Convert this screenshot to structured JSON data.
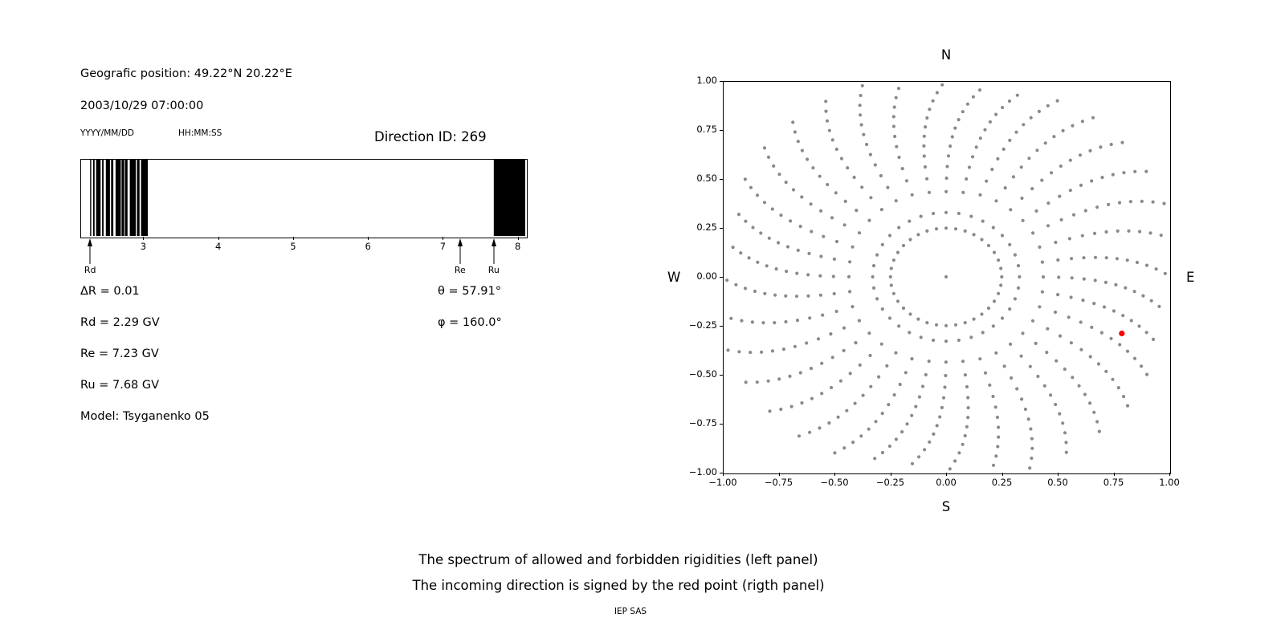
{
  "page": {
    "bg": "#ffffff",
    "caption_line1": "The spectrum of allowed and forbidden rigidities (left panel)",
    "caption_line2": "The incoming direction is signed by the red point (rigth panel)",
    "credit": "IEP SAS"
  },
  "info": {
    "geo_position": "Geografic position: 49.22°N 20.22°E",
    "datetime": "2003/10/29 07:00:00",
    "date_format_label": "YYYY/MM/DD",
    "time_format_label": "HH:MM:SS",
    "direction_id": "Direction ID: 269",
    "delta_r": "ΔR = 0.01",
    "rd": "Rd = 2.29 GV",
    "re": "Re = 7.23 GV",
    "ru": "Ru = 7.68 GV",
    "model": "Model: Tsyganenko 05",
    "theta": "θ = 57.91°",
    "phi": "φ = 160.0°"
  },
  "chart_data": [
    {
      "type": "bar",
      "name": "rigidity-spectrum",
      "description": "Binary spectrum of allowed (white) and forbidden (black) cosmic-ray rigidities in GV",
      "xlim": [
        2.17,
        8.1
      ],
      "xtick_values": [
        3,
        4,
        5,
        6,
        7,
        8
      ],
      "xtick_labels": [
        "3",
        "4",
        "5",
        "6",
        "7",
        "8"
      ],
      "black_segments": [
        [
          2.29,
          2.305
        ],
        [
          2.33,
          2.35
        ],
        [
          2.37,
          2.43
        ],
        [
          2.45,
          2.47
        ],
        [
          2.5,
          2.555
        ],
        [
          2.57,
          2.6
        ],
        [
          2.63,
          2.7
        ],
        [
          2.71,
          2.745
        ],
        [
          2.755,
          2.79
        ],
        [
          2.82,
          2.9
        ],
        [
          2.915,
          2.95
        ],
        [
          2.97,
          3.06
        ],
        [
          7.68,
          8.1
        ]
      ],
      "markers": [
        {
          "label": "Rd",
          "value": 2.29
        },
        {
          "label": "Re",
          "value": 7.23
        },
        {
          "label": "Ru",
          "value": 7.68
        }
      ],
      "bar_color": "#000000",
      "background": "#ffffff"
    },
    {
      "type": "scatter",
      "name": "incoming-direction-map",
      "xlim": [
        -1,
        1
      ],
      "ylim": [
        -1,
        1
      ],
      "xtick_values": [
        -1,
        -0.75,
        -0.5,
        -0.25,
        0,
        0.25,
        0.5,
        0.75,
        1
      ],
      "xtick_labels": [
        "−1.00",
        "−0.75",
        "−0.50",
        "−0.25",
        "0.00",
        "0.25",
        "0.50",
        "0.75",
        "1.00"
      ],
      "ytick_values": [
        1,
        0.75,
        0.5,
        0.25,
        0,
        -0.25,
        -0.5,
        -0.75,
        -1
      ],
      "ytick_labels": [
        "1.00",
        "0.75",
        "0.50",
        "0.25",
        "0.00",
        "−0.25",
        "−0.50",
        "−0.75",
        "−1.00"
      ],
      "compass": {
        "top": "N",
        "bottom": "S",
        "left": "W",
        "right": "E"
      },
      "grid": false,
      "dot_color": "#8a8a8a",
      "red_point": {
        "x": 0.79,
        "y": -0.29,
        "color": "#ff0000"
      },
      "pattern": {
        "n_spokes": 36,
        "angle_step_deg": 10,
        "r_inner": 0.33,
        "r_edge": 0.97,
        "r_outer_max": 1.05,
        "dots_per_spoke": 13,
        "twist_deg": -9,
        "inner_ring_radius": 0.25,
        "inner_ring_dots": 36,
        "center_dot": true
      }
    }
  ]
}
